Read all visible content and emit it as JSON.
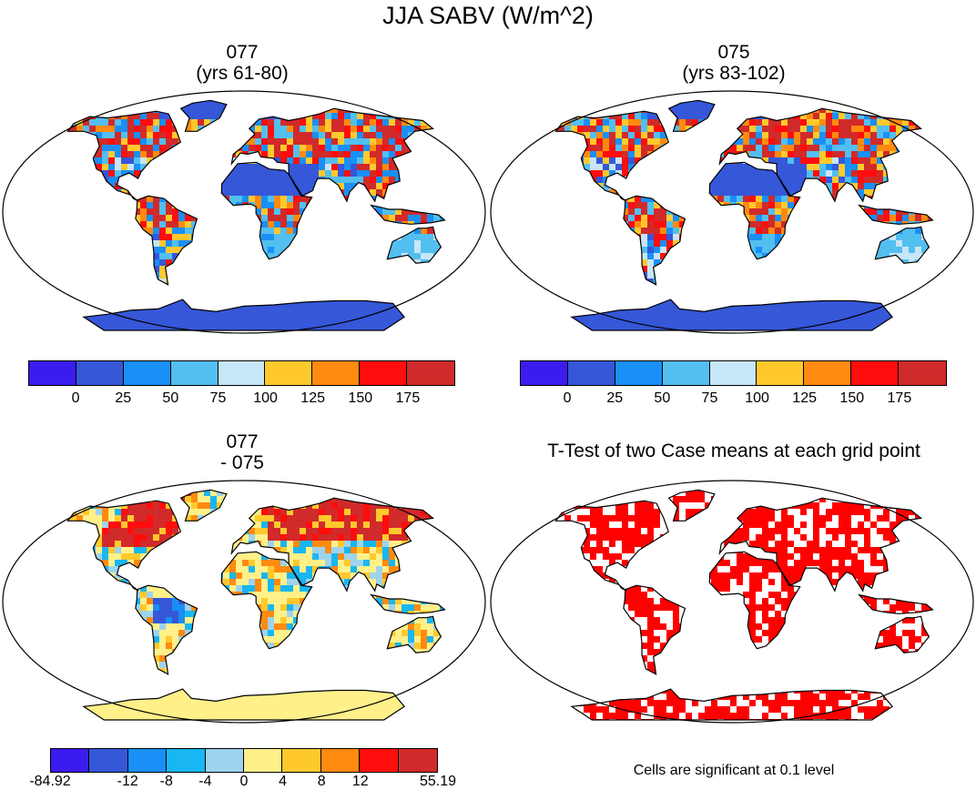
{
  "title": "JJA SABV (W/m^2)",
  "panels": {
    "top_left": {
      "line1": "077",
      "line2": "(yrs 61-80)"
    },
    "top_right": {
      "line1": "075",
      "line2": "(yrs 83-102)"
    },
    "bottom_left": {
      "line1": "077",
      "line2": "- 075"
    },
    "bottom_right": {
      "title": "T-Test of two Case means at each grid point",
      "note": "Cells are significant at 0.1 level"
    }
  },
  "chart_data": [
    {
      "type": "heatmap",
      "title": "077 (yrs 61-80)",
      "projection": "Robinson",
      "variable": "JJA SABV (W/m^2)",
      "colorbar": {
        "tick_labels": [
          "0",
          "25",
          "50",
          "75",
          "100",
          "125",
          "150",
          "175"
        ],
        "colors": [
          "#3a1cf0",
          "#3557d8",
          "#1a8ff5",
          "#52bff0",
          "#c7e6f7",
          "#ffc92e",
          "#ff8a10",
          "#ff0d0d",
          "#d12a2a"
        ]
      }
    },
    {
      "type": "heatmap",
      "title": "075 (yrs 83-102)",
      "projection": "Robinson",
      "variable": "JJA SABV (W/m^2)",
      "colorbar": {
        "tick_labels": [
          "0",
          "25",
          "50",
          "75",
          "100",
          "125",
          "150",
          "175"
        ],
        "colors": [
          "#3a1cf0",
          "#3557d8",
          "#1a8ff5",
          "#52bff0",
          "#c7e6f7",
          "#ffc92e",
          "#ff8a10",
          "#ff0d0d",
          "#d12a2a"
        ]
      }
    },
    {
      "type": "heatmap",
      "title": "077 - 075",
      "projection": "Robinson",
      "colorbar": {
        "tick_labels": [
          "-84.92",
          "-12",
          "-8",
          "-4",
          "0",
          "4",
          "8",
          "12",
          "55.19"
        ],
        "colors": [
          "#3a1cf0",
          "#3557d8",
          "#1a8ff5",
          "#18b6f2",
          "#9ed3ee",
          "#fff08a",
          "#ffc92e",
          "#ff8a10",
          "#ff0d0d",
          "#d12a2a"
        ]
      }
    },
    {
      "type": "heatmap",
      "title": "T-Test of two Case means at each grid point",
      "projection": "Robinson",
      "significance_level": 0.1,
      "colors": [
        "#ff0000"
      ]
    }
  ]
}
